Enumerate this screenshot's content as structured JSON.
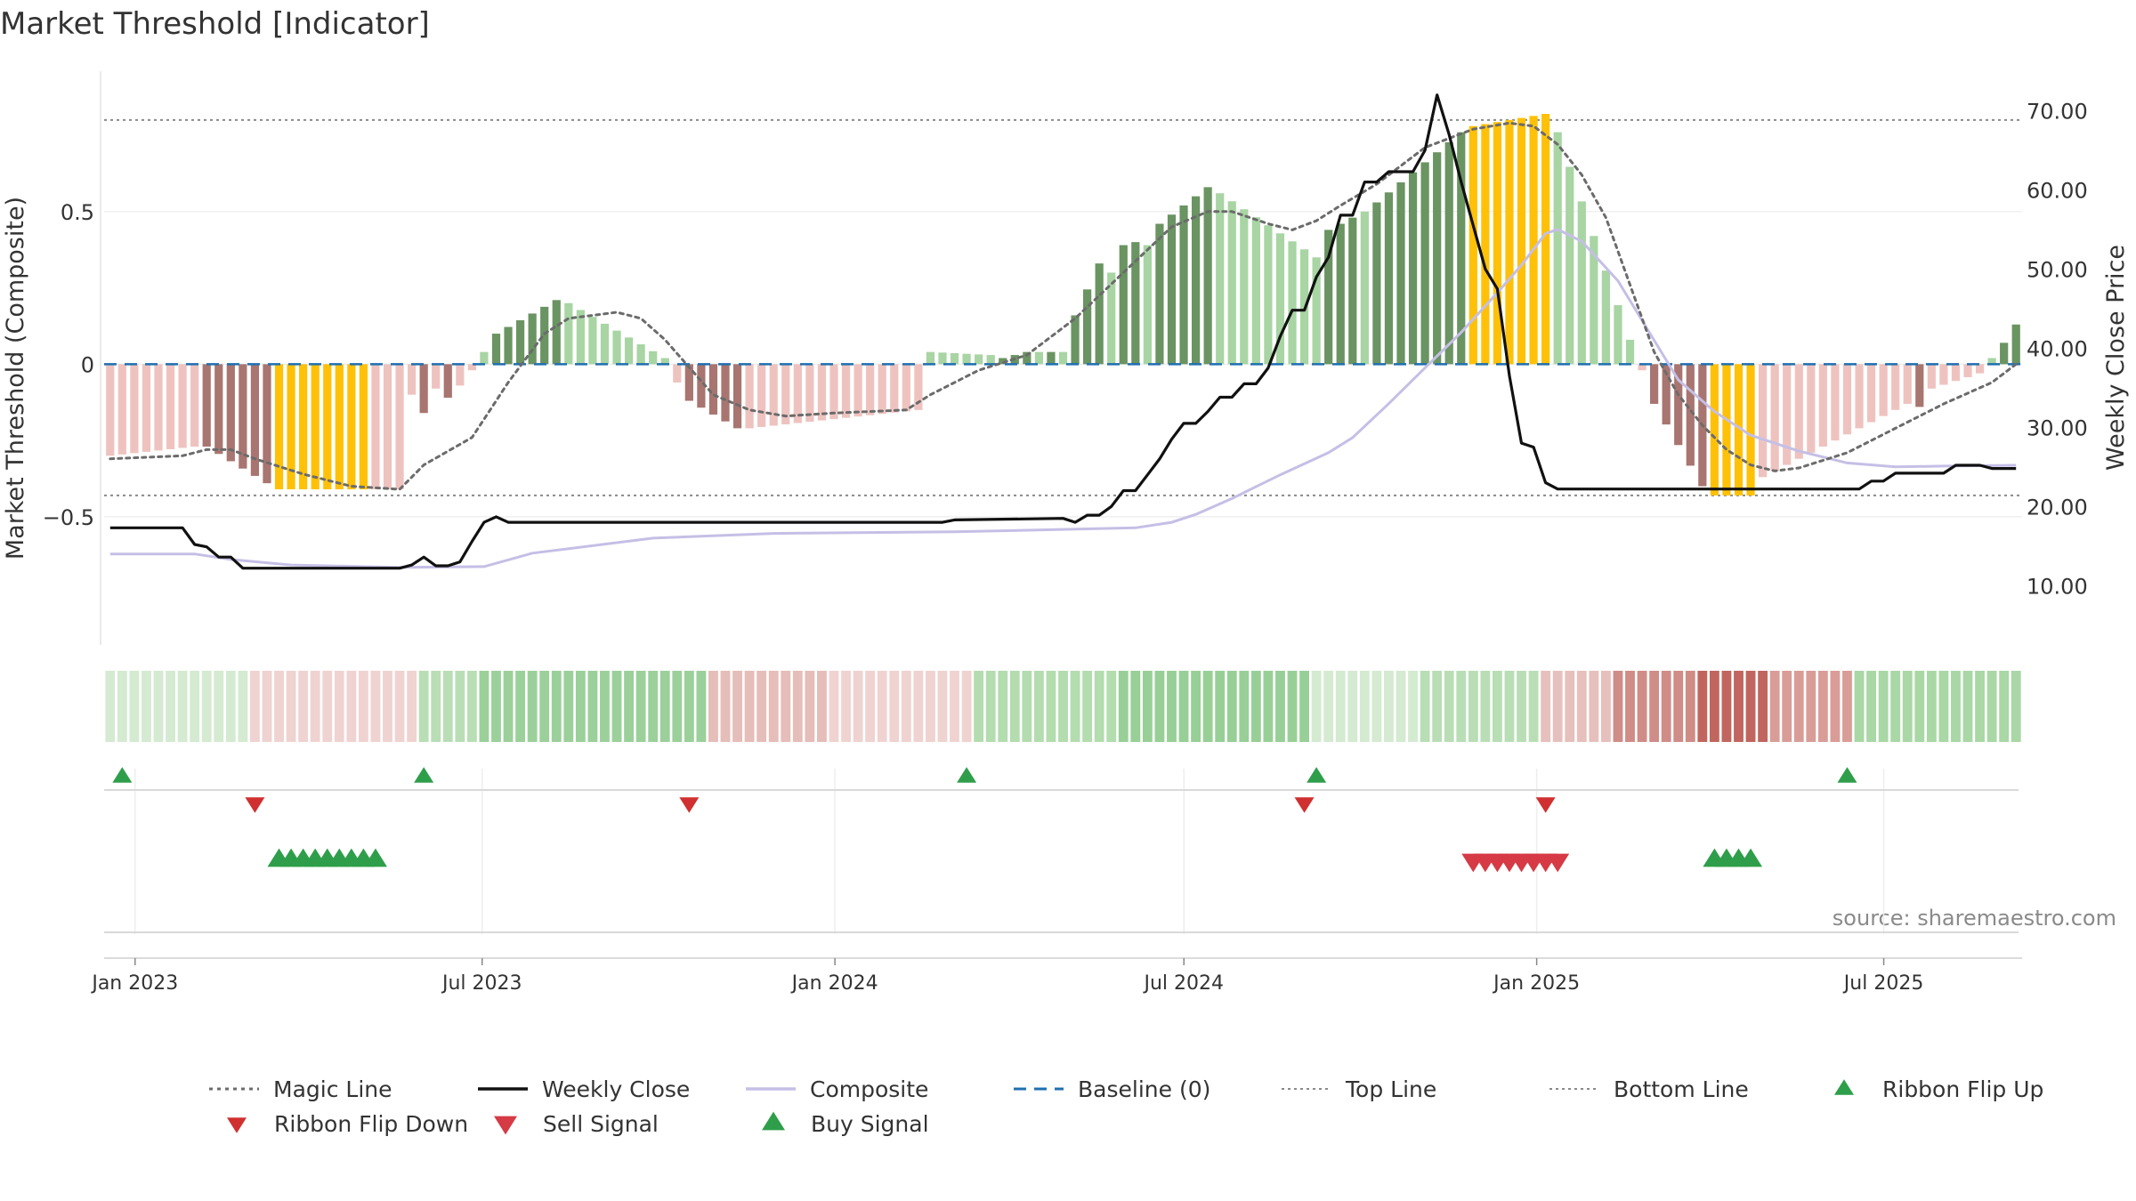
{
  "chart_data": {
    "type": "bar",
    "title": "Market Threshold [Indicator]",
    "ylabel_left": "Market Threshold (Composite)",
    "ylabel_right": "Weekly Close Price",
    "source": "source: sharemaestro.com",
    "left_axis": {
      "ylim": [
        -0.92,
        0.96
      ],
      "ticks": [
        -0.5,
        0,
        0.5
      ],
      "tick_labels": [
        "−0.5",
        "0",
        "0.5"
      ]
    },
    "right_axis": {
      "ylim": [
        2.5,
        75.0
      ],
      "ticks": [
        10,
        20,
        30,
        40,
        50,
        60,
        70
      ],
      "tick_labels": [
        "10.00",
        "20.00",
        "30.00",
        "40.00",
        "50.00",
        "60.00",
        "70.00"
      ]
    },
    "x_axis": {
      "start": "2022-12-19",
      "end": "2025-09-08",
      "ticks": [
        {
          "date": "2023-01-01",
          "label": "Jan 2023"
        },
        {
          "date": "2023-07-01",
          "label": "Jul 2023"
        },
        {
          "date": "2024-01-01",
          "label": "Jan 2024"
        },
        {
          "date": "2024-07-01",
          "label": "Jul 2024"
        },
        {
          "date": "2025-01-01",
          "label": "Jan 2025"
        },
        {
          "date": "2025-07-01",
          "label": "Jul 2025"
        }
      ]
    },
    "top_line": 0.8,
    "bottom_line": -0.43,
    "baseline": 0,
    "colors": {
      "strong_pos": "#6a9462",
      "weak_pos": "#a8d5a3",
      "extreme": "#ffc107",
      "strong_neg": "#a87570",
      "weak_neg": "#eec3bf",
      "magic": "#6b6b6b",
      "close": "#111111",
      "composite": "#c5bfe6",
      "baseline": "#1f6fb0",
      "threshold": "#8a8a8a",
      "buy": "#2e9e4a",
      "sell": "#d63a44",
      "flip_down": "#d03030"
    },
    "composite_bars": [
      {
        "start": 0,
        "end": 7,
        "v0": -0.3,
        "v1": -0.27,
        "c": "weak_neg"
      },
      {
        "start": 8,
        "end": 13,
        "v0": -0.27,
        "v1": -0.39,
        "c": "strong_neg"
      },
      {
        "start": 14,
        "end": 21,
        "v0": -0.41,
        "v1": -0.41,
        "c": "extreme"
      },
      {
        "start": 22,
        "end": 24,
        "v0": -0.41,
        "v1": -0.41,
        "c": "weak_neg"
      },
      {
        "start": 25,
        "end": 25,
        "v0": -0.1,
        "v1": -0.1,
        "c": "weak_neg"
      },
      {
        "start": 26,
        "end": 26,
        "v0": -0.16,
        "v1": -0.16,
        "c": "strong_neg"
      },
      {
        "start": 27,
        "end": 27,
        "v0": -0.08,
        "v1": -0.08,
        "c": "weak_neg"
      },
      {
        "start": 28,
        "end": 28,
        "v0": -0.11,
        "v1": -0.11,
        "c": "strong_neg"
      },
      {
        "start": 29,
        "end": 30,
        "v0": -0.07,
        "v1": -0.02,
        "c": "weak_neg"
      },
      {
        "start": 31,
        "end": 31,
        "v0": 0.04,
        "v1": 0.04,
        "c": "weak_pos"
      },
      {
        "start": 32,
        "end": 37,
        "v0": 0.1,
        "v1": 0.21,
        "c": "strong_pos"
      },
      {
        "start": 38,
        "end": 46,
        "v0": 0.2,
        "v1": 0.02,
        "c": "weak_pos"
      },
      {
        "start": 47,
        "end": 47,
        "v0": -0.06,
        "v1": -0.06,
        "c": "weak_neg"
      },
      {
        "start": 48,
        "end": 52,
        "v0": -0.12,
        "v1": -0.21,
        "c": "strong_neg"
      },
      {
        "start": 53,
        "end": 67,
        "v0": -0.21,
        "v1": -0.15,
        "c": "weak_neg"
      },
      {
        "start": 68,
        "end": 73,
        "v0": 0.04,
        "v1": 0.03,
        "c": "weak_pos"
      },
      {
        "start": 74,
        "end": 76,
        "v0": 0.02,
        "v1": 0.04,
        "c": "strong_pos"
      },
      {
        "start": 77,
        "end": 77,
        "v0": 0.04,
        "v1": 0.04,
        "c": "weak_pos"
      },
      {
        "start": 78,
        "end": 78,
        "v0": 0.04,
        "v1": 0.04,
        "c": "strong_pos"
      },
      {
        "start": 79,
        "end": 79,
        "v0": 0.04,
        "v1": 0.04,
        "c": "weak_pos"
      },
      {
        "start": 80,
        "end": 82,
        "v0": 0.16,
        "v1": 0.33,
        "c": "strong_pos"
      },
      {
        "start": 83,
        "end": 83,
        "v0": 0.3,
        "v1": 0.3,
        "c": "weak_pos"
      },
      {
        "start": 84,
        "end": 85,
        "v0": 0.39,
        "v1": 0.4,
        "c": "strong_pos"
      },
      {
        "start": 86,
        "end": 86,
        "v0": 0.39,
        "v1": 0.39,
        "c": "weak_pos"
      },
      {
        "start": 87,
        "end": 91,
        "v0": 0.46,
        "v1": 0.58,
        "c": "strong_pos"
      },
      {
        "start": 92,
        "end": 100,
        "v0": 0.56,
        "v1": 0.35,
        "c": "weak_pos"
      },
      {
        "start": 101,
        "end": 103,
        "v0": 0.44,
        "v1": 0.48,
        "c": "strong_pos"
      },
      {
        "start": 104,
        "end": 104,
        "v0": 0.5,
        "v1": 0.5,
        "c": "weak_pos"
      },
      {
        "start": 105,
        "end": 112,
        "v0": 0.53,
        "v1": 0.76,
        "c": "strong_pos"
      },
      {
        "start": 113,
        "end": 119,
        "v0": 0.78,
        "v1": 0.82,
        "c": "extreme"
      },
      {
        "start": 120,
        "end": 126,
        "v0": 0.76,
        "v1": 0.08,
        "c": "weak_pos"
      },
      {
        "start": 127,
        "end": 127,
        "v0": -0.02,
        "v1": -0.02,
        "c": "weak_neg"
      },
      {
        "start": 128,
        "end": 132,
        "v0": -0.13,
        "v1": -0.4,
        "c": "strong_neg"
      },
      {
        "start": 133,
        "end": 136,
        "v0": -0.43,
        "v1": -0.43,
        "c": "extreme"
      },
      {
        "start": 137,
        "end": 149,
        "v0": -0.37,
        "v1": -0.13,
        "c": "weak_neg"
      },
      {
        "start": 150,
        "end": 150,
        "v0": -0.14,
        "v1": -0.14,
        "c": "strong_neg"
      },
      {
        "start": 151,
        "end": 155,
        "v0": -0.08,
        "v1": -0.03,
        "c": "weak_neg"
      },
      {
        "start": 156,
        "end": 156,
        "v0": 0.02,
        "v1": 0.02,
        "c": "weak_pos"
      },
      {
        "start": 157,
        "end": 158,
        "v0": 0.07,
        "v1": 0.13,
        "c": "strong_pos"
      }
    ],
    "weekly_close": [
      [
        0,
        17.3
      ],
      [
        6,
        17.3
      ],
      [
        7,
        15.2
      ],
      [
        8,
        14.9
      ],
      [
        9,
        13.6
      ],
      [
        10,
        13.6
      ],
      [
        11,
        12.2
      ],
      [
        12,
        12.2
      ],
      [
        24,
        12.2
      ],
      [
        25,
        12.6
      ],
      [
        26,
        13.6
      ],
      [
        27,
        12.5
      ],
      [
        28,
        12.5
      ],
      [
        29,
        13.0
      ],
      [
        30,
        15.6
      ],
      [
        31,
        18.0
      ],
      [
        32,
        18.7
      ],
      [
        33,
        18.0
      ],
      [
        34,
        18.0
      ],
      [
        69,
        18.0
      ],
      [
        70,
        18.3
      ],
      [
        79,
        18.5
      ],
      [
        80,
        18.0
      ],
      [
        81,
        18.9
      ],
      [
        82,
        18.9
      ],
      [
        83,
        20.0
      ],
      [
        84,
        22.0
      ],
      [
        85,
        22.0
      ],
      [
        86,
        24.0
      ],
      [
        87,
        26.0
      ],
      [
        88,
        28.5
      ],
      [
        89,
        30.5
      ],
      [
        90,
        30.5
      ],
      [
        91,
        32.0
      ],
      [
        92,
        33.8
      ],
      [
        93,
        33.8
      ],
      [
        94,
        35.5
      ],
      [
        95,
        35.5
      ],
      [
        96,
        37.5
      ],
      [
        97,
        41.5
      ],
      [
        98,
        44.8
      ],
      [
        99,
        44.8
      ],
      [
        100,
        49.0
      ],
      [
        101,
        51.5
      ],
      [
        102,
        56.8
      ],
      [
        103,
        56.8
      ],
      [
        104,
        61.0
      ],
      [
        105,
        61.0
      ],
      [
        106,
        62.3
      ],
      [
        107,
        62.3
      ],
      [
        108,
        62.3
      ],
      [
        109,
        65.0
      ],
      [
        110,
        72.0
      ],
      [
        111,
        67.0
      ],
      [
        112,
        61.0
      ],
      [
        113,
        55.5
      ],
      [
        114,
        50.0
      ],
      [
        115,
        47.5
      ],
      [
        116,
        36.5
      ],
      [
        117,
        28.0
      ],
      [
        118,
        27.5
      ],
      [
        119,
        23.0
      ],
      [
        120,
        22.2
      ],
      [
        145,
        22.2
      ],
      [
        146,
        23.2
      ],
      [
        147,
        23.2
      ],
      [
        148,
        24.2
      ],
      [
        152,
        24.2
      ],
      [
        153,
        25.2
      ],
      [
        155,
        25.2
      ],
      [
        156,
        24.8
      ],
      [
        158,
        24.8
      ]
    ],
    "composite_line": [
      [
        0,
        14.0
      ],
      [
        7,
        14.0
      ],
      [
        10,
        13.3
      ],
      [
        15,
        12.6
      ],
      [
        24,
        12.3
      ],
      [
        31,
        12.4
      ],
      [
        35,
        14.1
      ],
      [
        45,
        16.0
      ],
      [
        55,
        16.6
      ],
      [
        70,
        16.8
      ],
      [
        85,
        17.3
      ],
      [
        88,
        18.0
      ],
      [
        90,
        19.0
      ],
      [
        93,
        21.0
      ],
      [
        97,
        24.0
      ],
      [
        101,
        26.8
      ],
      [
        103,
        28.7
      ],
      [
        106,
        33.0
      ],
      [
        109,
        37.5
      ],
      [
        112,
        42.0
      ],
      [
        115,
        47.0
      ],
      [
        117,
        50.5
      ],
      [
        119,
        54.5
      ],
      [
        120,
        55.0
      ],
      [
        122,
        53.5
      ],
      [
        125,
        48.5
      ],
      [
        128,
        41.0
      ],
      [
        130,
        36.0
      ],
      [
        133,
        32.0
      ],
      [
        136,
        29.0
      ],
      [
        140,
        27.0
      ],
      [
        144,
        25.5
      ],
      [
        148,
        25.0
      ],
      [
        152,
        25.1
      ],
      [
        158,
        25.2
      ]
    ],
    "magic_line": [
      [
        0,
        -0.31
      ],
      [
        6,
        -0.3
      ],
      [
        8,
        -0.28
      ],
      [
        10,
        -0.28
      ],
      [
        12,
        -0.31
      ],
      [
        16,
        -0.36
      ],
      [
        20,
        -0.4
      ],
      [
        24,
        -0.41
      ],
      [
        26,
        -0.33
      ],
      [
        30,
        -0.24
      ],
      [
        33,
        -0.06
      ],
      [
        36,
        0.1
      ],
      [
        38,
        0.15
      ],
      [
        42,
        0.17
      ],
      [
        44,
        0.15
      ],
      [
        46,
        0.08
      ],
      [
        48,
        -0.01
      ],
      [
        50,
        -0.1
      ],
      [
        53,
        -0.15
      ],
      [
        56,
        -0.17
      ],
      [
        60,
        -0.16
      ],
      [
        66,
        -0.15
      ],
      [
        68,
        -0.1
      ],
      [
        72,
        -0.02
      ],
      [
        76,
        0.03
      ],
      [
        80,
        0.15
      ],
      [
        84,
        0.3
      ],
      [
        88,
        0.45
      ],
      [
        91,
        0.5
      ],
      [
        93,
        0.5
      ],
      [
        96,
        0.46
      ],
      [
        98,
        0.44
      ],
      [
        100,
        0.47
      ],
      [
        102,
        0.52
      ],
      [
        105,
        0.59
      ],
      [
        109,
        0.71
      ],
      [
        113,
        0.77
      ],
      [
        116,
        0.79
      ],
      [
        118,
        0.78
      ],
      [
        120,
        0.72
      ],
      [
        122,
        0.62
      ],
      [
        124,
        0.48
      ],
      [
        126,
        0.26
      ],
      [
        128,
        0.04
      ],
      [
        130,
        -0.1
      ],
      [
        132,
        -0.2
      ],
      [
        134,
        -0.28
      ],
      [
        136,
        -0.33
      ],
      [
        138,
        -0.35
      ],
      [
        140,
        -0.34
      ],
      [
        144,
        -0.29
      ],
      [
        148,
        -0.21
      ],
      [
        152,
        -0.13
      ],
      [
        156,
        -0.06
      ],
      [
        158,
        0.0
      ]
    ],
    "ribbon": [
      {
        "start": 0,
        "end": 11,
        "c": "#d4ead1"
      },
      {
        "start": 12,
        "end": 25,
        "c": "#efd3d1"
      },
      {
        "start": 26,
        "end": 30,
        "c": "#b9deb6"
      },
      {
        "start": 31,
        "end": 49,
        "c": "#9bd09a"
      },
      {
        "start": 50,
        "end": 59,
        "c": "#e5bdb9"
      },
      {
        "start": 60,
        "end": 71,
        "c": "#efd3d1"
      },
      {
        "start": 72,
        "end": 83,
        "c": "#b3dcaf"
      },
      {
        "start": 84,
        "end": 99,
        "c": "#98cf97"
      },
      {
        "start": 100,
        "end": 108,
        "c": "#d4ead1"
      },
      {
        "start": 109,
        "end": 118,
        "c": "#b9deb6"
      },
      {
        "start": 119,
        "end": 124,
        "c": "#e6c0bc"
      },
      {
        "start": 125,
        "end": 131,
        "c": "#d08c87"
      },
      {
        "start": 132,
        "end": 137,
        "c": "#c0665f"
      },
      {
        "start": 138,
        "end": 144,
        "c": "#d99d98"
      },
      {
        "start": 145,
        "end": 158,
        "c": "#a9d7a5"
      }
    ],
    "ribbon_flip_up": [
      1,
      26,
      71,
      100,
      144
    ],
    "ribbon_flip_down": [
      12,
      48,
      99,
      119
    ],
    "buy_signal": [
      14,
      15,
      16,
      17,
      18,
      19,
      20,
      21,
      22,
      133,
      134,
      135,
      136
    ],
    "sell_signal": [
      113,
      114,
      115,
      116,
      117,
      118,
      119,
      120
    ],
    "legend": [
      {
        "label": "Magic Line",
        "kind": "dotted",
        "color": "magic"
      },
      {
        "label": "Weekly Close",
        "kind": "solid",
        "color": "close"
      },
      {
        "label": "Composite",
        "kind": "solid-light",
        "color": "composite"
      },
      {
        "label": "Baseline (0)",
        "kind": "dashed",
        "color": "baseline"
      },
      {
        "label": "Top Line",
        "kind": "fine-dotted",
        "color": "threshold"
      },
      {
        "label": "Bottom Line",
        "kind": "fine-dotted",
        "color": "threshold"
      },
      {
        "label": "Ribbon Flip Up",
        "kind": "tri-up",
        "color": "buy"
      },
      {
        "label": "Ribbon Flip Down",
        "kind": "tri-down",
        "color": "flip_down"
      },
      {
        "label": "Sell Signal",
        "kind": "tri-down-big",
        "color": "sell"
      },
      {
        "label": "Buy Signal",
        "kind": "tri-up-big",
        "color": "buy"
      }
    ],
    "legend_placement": "bottom"
  }
}
